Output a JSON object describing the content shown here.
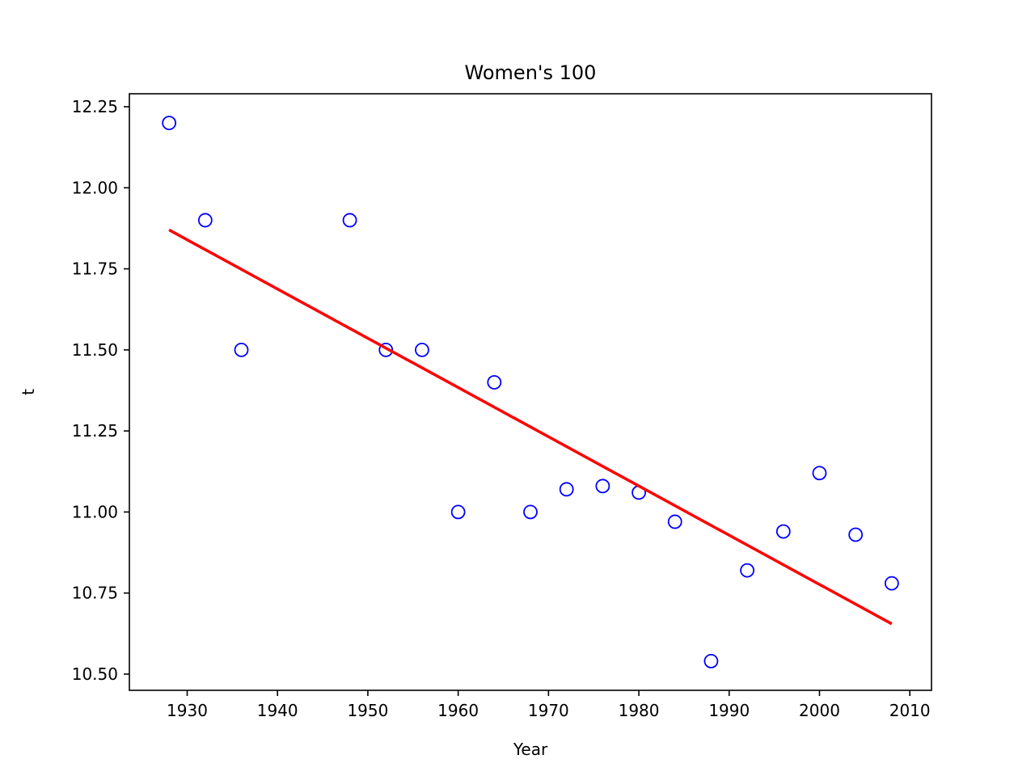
{
  "chart_data": {
    "type": "scatter",
    "title": "Women's 100",
    "xlabel": "Year",
    "ylabel": "t",
    "xlim": [
      1923.6,
      2012.4
    ],
    "ylim": [
      10.45,
      12.29
    ],
    "xticks": [
      1930,
      1940,
      1950,
      1960,
      1970,
      1980,
      1990,
      2000,
      2010
    ],
    "yticks": [
      10.5,
      10.75,
      11.0,
      11.25,
      11.5,
      11.75,
      12.0,
      12.25
    ],
    "grid": false,
    "series": [
      {
        "type": "scatter",
        "marker": "open-circle",
        "color": "#0000ff",
        "x": [
          1928,
          1932,
          1936,
          1948,
          1952,
          1956,
          1960,
          1964,
          1968,
          1972,
          1976,
          1980,
          1984,
          1988,
          1992,
          1996,
          2000,
          2004,
          2008
        ],
        "y": [
          12.2,
          11.9,
          11.5,
          11.9,
          11.5,
          11.5,
          11.0,
          11.4,
          11.0,
          11.07,
          11.08,
          11.06,
          10.97,
          10.54,
          10.82,
          10.94,
          11.12,
          10.93,
          10.78
        ]
      },
      {
        "type": "line",
        "color": "#ff0000",
        "x": [
          1928,
          2008
        ],
        "y": [
          11.87,
          10.655
        ]
      }
    ]
  }
}
